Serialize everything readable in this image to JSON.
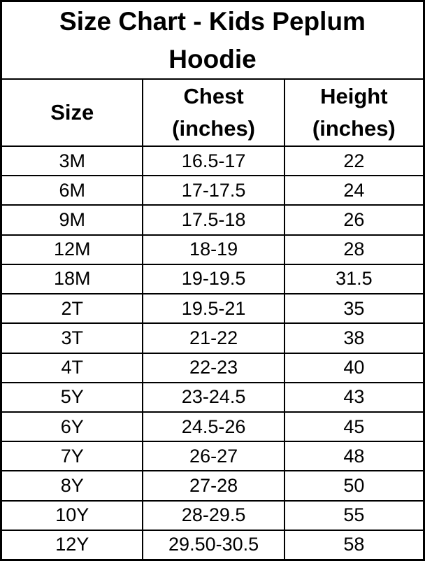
{
  "title": "Size Chart - Kids Peplum Hoodie",
  "header": {
    "size": "Size",
    "chest": "Chest\n(inches)",
    "height": "Height\n(inches)"
  },
  "chart_data": {
    "type": "table",
    "title": "Size Chart - Kids Peplum Hoodie",
    "columns": [
      "Size",
      "Chest (inches)",
      "Height (inches)"
    ],
    "rows": [
      [
        "3M",
        "16.5-17",
        "22"
      ],
      [
        "6M",
        "17-17.5",
        "24"
      ],
      [
        "9M",
        "17.5-18",
        "26"
      ],
      [
        "12M",
        "18-19",
        "28"
      ],
      [
        "18M",
        "19-19.5",
        "31.5"
      ],
      [
        "2T",
        "19.5-21",
        "35"
      ],
      [
        "3T",
        "21-22",
        "38"
      ],
      [
        "4T",
        "22-23",
        "40"
      ],
      [
        "5Y",
        "23-24.5",
        "43"
      ],
      [
        "6Y",
        "24.5-26",
        "45"
      ],
      [
        "7Y",
        "26-27",
        "48"
      ],
      [
        "8Y",
        "27-28",
        "50"
      ],
      [
        "10Y",
        "28-29.5",
        "55"
      ],
      [
        "12Y",
        "29.50-30.5",
        "58"
      ]
    ]
  }
}
